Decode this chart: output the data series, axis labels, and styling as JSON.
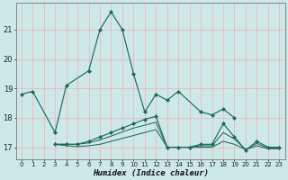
{
  "xlabel": "Humidex (Indice chaleur)",
  "bg_color": "#cce9e8",
  "grid_color": "#f2b6b6",
  "line_color": "#1a6b5e",
  "ylim": [
    16.6,
    21.9
  ],
  "yticks": [
    17,
    18,
    19,
    20,
    21
  ],
  "xlim": [
    -0.5,
    23.5
  ],
  "xticks": [
    0,
    1,
    2,
    3,
    4,
    5,
    6,
    7,
    8,
    9,
    10,
    11,
    12,
    13,
    14,
    15,
    16,
    17,
    18,
    19,
    20,
    21,
    22,
    23
  ],
  "line1_x": [
    0,
    1,
    3,
    4,
    6,
    7,
    8,
    9,
    10,
    11,
    12,
    13,
    14,
    16,
    17,
    18,
    19
  ],
  "line1_y": [
    18.8,
    18.9,
    17.5,
    19.1,
    19.6,
    21.0,
    21.6,
    21.0,
    19.5,
    18.2,
    18.8,
    18.6,
    18.9,
    18.2,
    18.1,
    18.3,
    18.0
  ],
  "line2_x": [
    3,
    4,
    5,
    6,
    7,
    8,
    9,
    10,
    11,
    12,
    13,
    14,
    15,
    16,
    17,
    18,
    19,
    20,
    21,
    22,
    23
  ],
  "line2_y": [
    17.1,
    17.1,
    17.1,
    17.2,
    17.35,
    17.5,
    17.65,
    17.8,
    17.95,
    18.05,
    17.0,
    17.0,
    17.0,
    17.1,
    17.1,
    17.8,
    17.35,
    16.9,
    17.2,
    17.0,
    17.0
  ],
  "line3_x": [
    3,
    4,
    5,
    6,
    7,
    8,
    9,
    10,
    11,
    12,
    13,
    14,
    15,
    16,
    17,
    18,
    19,
    20,
    21,
    22,
    23
  ],
  "line3_y": [
    17.1,
    17.1,
    17.1,
    17.15,
    17.25,
    17.38,
    17.52,
    17.65,
    17.75,
    17.85,
    17.0,
    17.0,
    17.0,
    17.05,
    17.05,
    17.5,
    17.28,
    16.92,
    17.13,
    16.97,
    16.97
  ],
  "line4_x": [
    3,
    4,
    5,
    6,
    7,
    8,
    9,
    10,
    11,
    12,
    13,
    14,
    15,
    16,
    17,
    18,
    19,
    20,
    21,
    22,
    23
  ],
  "line4_y": [
    17.1,
    17.05,
    17.02,
    17.05,
    17.1,
    17.2,
    17.3,
    17.4,
    17.5,
    17.6,
    17.0,
    17.0,
    17.0,
    17.0,
    17.0,
    17.2,
    17.1,
    16.92,
    17.05,
    16.95,
    16.95
  ]
}
